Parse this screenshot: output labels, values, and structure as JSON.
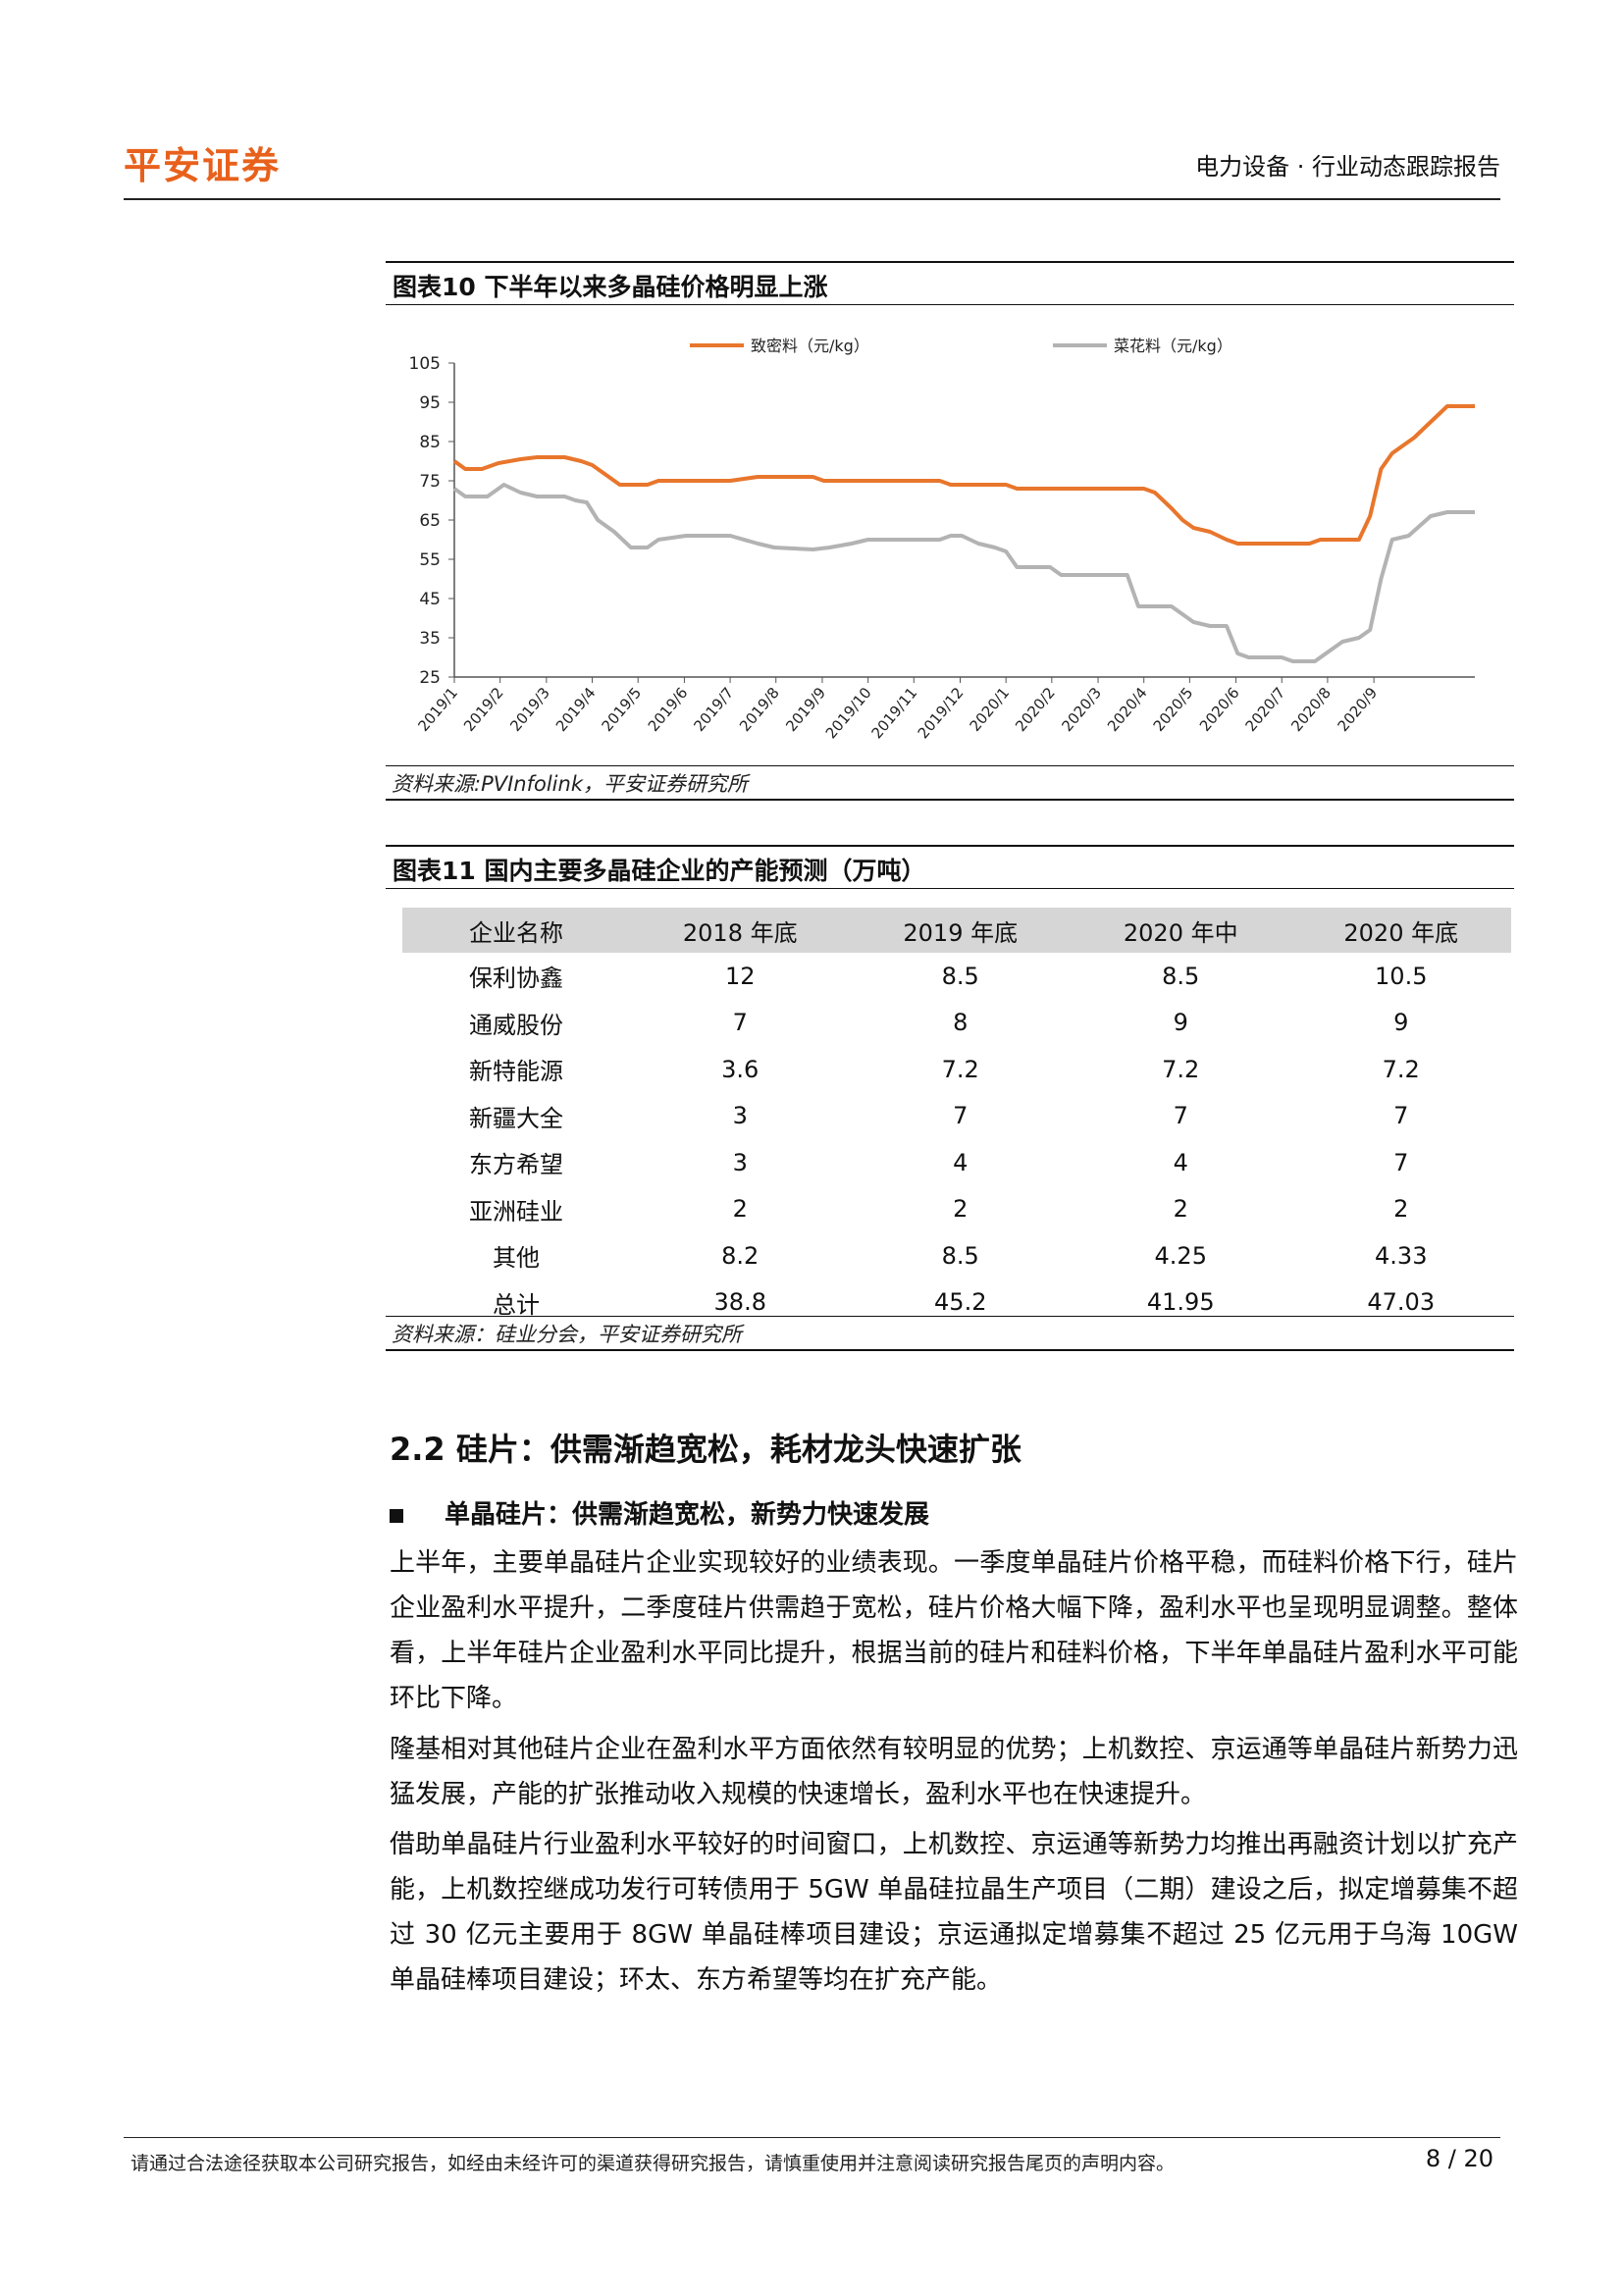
{
  "header": {
    "logo_text": "平安证券",
    "report_type": "电力设备 · 行业动态跟踪报告"
  },
  "figure10": {
    "title": "图表10    下半年以来多晶硅价格明显上涨",
    "source": "资料来源:PVInfolink，平安证券研究所"
  },
  "chart_data": {
    "type": "line",
    "title": "",
    "xlabel": "",
    "ylabel": "",
    "ylim": [
      25,
      105
    ],
    "yticks": [
      105,
      95,
      85,
      75,
      65,
      55,
      45,
      35,
      25
    ],
    "grid": false,
    "legend_position": "top",
    "x_tick_labels": [
      "2019/1",
      "2019/2",
      "2019/3",
      "2019/4",
      "2019/5",
      "2019/6",
      "2019/7",
      "2019/8",
      "2019/9",
      "2019/10",
      "2019/11",
      "2019/12",
      "2020/1",
      "2020/2",
      "2020/3",
      "2020/4",
      "2020/5",
      "2020/6",
      "2020/7",
      "2020/8",
      "2020/9"
    ],
    "x_months": [
      2019.0,
      2019.083,
      2019.167,
      2019.25,
      2019.333,
      2019.417,
      2019.5,
      2019.583,
      2019.667,
      2019.75,
      2019.833,
      2019.917,
      2020.0,
      2020.083,
      2020.167,
      2020.25,
      2020.333,
      2020.417,
      2020.5,
      2020.583,
      2020.667
    ],
    "series": [
      {
        "name": "致密料（元/kg）",
        "color": "#e8762c",
        "points": [
          [
            2019.0,
            80
          ],
          [
            2019.02,
            78
          ],
          [
            2019.05,
            78
          ],
          [
            2019.08,
            79.5
          ],
          [
            2019.12,
            80.5
          ],
          [
            2019.15,
            81
          ],
          [
            2019.2,
            81
          ],
          [
            2019.23,
            80
          ],
          [
            2019.25,
            79
          ],
          [
            2019.27,
            77
          ],
          [
            2019.3,
            74
          ],
          [
            2019.35,
            74
          ],
          [
            2019.37,
            75
          ],
          [
            2019.45,
            75
          ],
          [
            2019.5,
            75
          ],
          [
            2019.55,
            76
          ],
          [
            2019.65,
            76
          ],
          [
            2019.67,
            75
          ],
          [
            2019.8,
            75
          ],
          [
            2019.88,
            75
          ],
          [
            2019.9,
            74
          ],
          [
            2020.0,
            74
          ],
          [
            2020.02,
            73
          ],
          [
            2020.25,
            73
          ],
          [
            2020.27,
            72
          ],
          [
            2020.3,
            68
          ],
          [
            2020.32,
            65
          ],
          [
            2020.34,
            63
          ],
          [
            2020.37,
            62
          ],
          [
            2020.4,
            60
          ],
          [
            2020.42,
            59
          ],
          [
            2020.55,
            59
          ],
          [
            2020.57,
            60
          ],
          [
            2020.64,
            60
          ],
          [
            2020.66,
            66
          ],
          [
            2020.68,
            78
          ],
          [
            2020.7,
            82
          ],
          [
            2020.74,
            86
          ],
          [
            2020.77,
            90
          ],
          [
            2020.8,
            94
          ],
          [
            2020.85,
            94
          ]
        ]
      },
      {
        "name": "菜花料（元/kg）",
        "color": "#b3b3b3",
        "points": [
          [
            2019.0,
            73
          ],
          [
            2019.02,
            71
          ],
          [
            2019.06,
            71
          ],
          [
            2019.09,
            74
          ],
          [
            2019.12,
            72
          ],
          [
            2019.15,
            71
          ],
          [
            2019.2,
            71
          ],
          [
            2019.22,
            70
          ],
          [
            2019.24,
            69.5
          ],
          [
            2019.26,
            65
          ],
          [
            2019.29,
            62
          ],
          [
            2019.32,
            58
          ],
          [
            2019.35,
            58
          ],
          [
            2019.37,
            60
          ],
          [
            2019.42,
            61
          ],
          [
            2019.5,
            61
          ],
          [
            2019.55,
            59
          ],
          [
            2019.58,
            58
          ],
          [
            2019.65,
            57.5
          ],
          [
            2019.68,
            58
          ],
          [
            2019.72,
            59
          ],
          [
            2019.75,
            60
          ],
          [
            2019.88,
            60
          ],
          [
            2019.9,
            61
          ],
          [
            2019.92,
            61
          ],
          [
            2019.95,
            59
          ],
          [
            2019.98,
            58
          ],
          [
            2020.0,
            57
          ],
          [
            2020.02,
            53
          ],
          [
            2020.08,
            53
          ],
          [
            2020.1,
            51
          ],
          [
            2020.22,
            51
          ],
          [
            2020.24,
            43
          ],
          [
            2020.3,
            43
          ],
          [
            2020.34,
            39
          ],
          [
            2020.37,
            38
          ],
          [
            2020.4,
            38
          ],
          [
            2020.42,
            31
          ],
          [
            2020.44,
            30
          ],
          [
            2020.5,
            30
          ],
          [
            2020.52,
            29
          ],
          [
            2020.56,
            29
          ],
          [
            2020.58,
            31
          ],
          [
            2020.61,
            34
          ],
          [
            2020.64,
            35
          ],
          [
            2020.66,
            37
          ],
          [
            2020.68,
            50
          ],
          [
            2020.7,
            60
          ],
          [
            2020.73,
            61
          ],
          [
            2020.77,
            66
          ],
          [
            2020.8,
            67
          ],
          [
            2020.85,
            67
          ]
        ]
      }
    ],
    "x_domain": [
      2019.0,
      2020.85
    ]
  },
  "figure11": {
    "title": "图表11    国内主要多晶硅企业的产能预测（万吨）",
    "source": "资料来源：硅业分会，平安证券研究所",
    "columns": [
      "企业名称",
      "2018 年底",
      "2019 年底",
      "2020 年中",
      "2020 年底"
    ],
    "rows": [
      [
        "保利协鑫",
        "12",
        "8.5",
        "8.5",
        "10.5"
      ],
      [
        "通威股份",
        "7",
        "8",
        "9",
        "9"
      ],
      [
        "新特能源",
        "3.6",
        "7.2",
        "7.2",
        "7.2"
      ],
      [
        "新疆大全",
        "3",
        "7",
        "7",
        "7"
      ],
      [
        "东方希望",
        "3",
        "4",
        "4",
        "7"
      ],
      [
        "亚洲硅业",
        "2",
        "2",
        "2",
        "2"
      ],
      [
        "其他",
        "8.2",
        "8.5",
        "4.25",
        "4.33"
      ],
      [
        "总计",
        "38.8",
        "45.2",
        "41.95",
        "47.03"
      ]
    ]
  },
  "section": {
    "heading": "2.2 硅片：供需渐趋宽松，耗材龙头快速扩张",
    "bullet": "单晶硅片：供需渐趋宽松，新势力快速发展",
    "paragraphs": [
      "上半年，主要单晶硅片企业实现较好的业绩表现。一季度单晶硅片价格平稳，而硅料价格下行，硅片企业盈利水平提升，二季度硅片供需趋于宽松，硅片价格大幅下降，盈利水平也呈现明显调整。整体看，上半年硅片企业盈利水平同比提升，根据当前的硅片和硅料价格，下半年单晶硅片盈利水平可能环比下降。",
      "隆基相对其他硅片企业在盈利水平方面依然有较明显的优势；上机数控、京运通等单晶硅片新势力迅猛发展，产能的扩张推动收入规模的快速增长，盈利水平也在快速提升。",
      "借助单晶硅片行业盈利水平较好的时间窗口，上机数控、京运通等新势力均推出再融资计划以扩充产能，上机数控继成功发行可转债用于 5GW 单晶硅拉晶生产项目（二期）建设之后，拟定增募集不超过 30 亿元主要用于 8GW 单晶硅棒项目建设；京运通拟定增募集不超过 25 亿元用于乌海 10GW 单晶硅棒项目建设；环太、东方希望等均在扩充产能。"
    ]
  },
  "footer": {
    "disclaimer": "请通过合法途径获取本公司研究报告，如经由未经许可的渠道获得研究报告，请慎重使用并注意阅读研究报告尾页的声明内容。",
    "page": "8 / 20"
  }
}
